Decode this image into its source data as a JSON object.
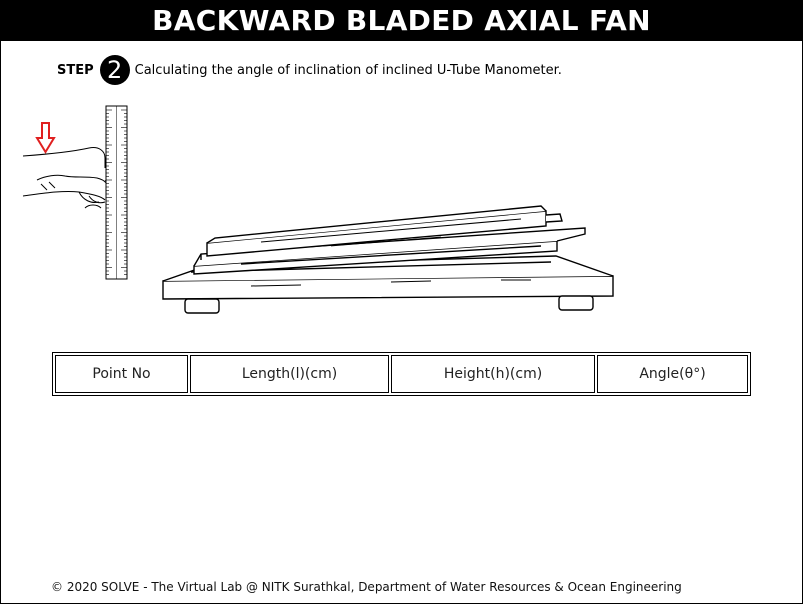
{
  "header": {
    "title": "BACKWARD BLADED AXIAL FAN"
  },
  "step": {
    "label": "STEP",
    "number": "2",
    "text": "Calculating the angle of inclination of inclined U-Tube Manometer."
  },
  "table": {
    "columns": [
      "Point No",
      "Length(l)(cm)",
      "Height(h)(cm)",
      "Angle(θ°)"
    ]
  },
  "footer": {
    "text": "© 2020 SOLVE - The Virtual Lab @ NITK Surathkal, Department of Water Resources & Ocean Engineering"
  },
  "icons": {
    "pointer": "red-down-arrow-icon"
  },
  "colors": {
    "header_bg": "#000000",
    "header_text": "#ffffff",
    "arrow": "#e02020"
  }
}
